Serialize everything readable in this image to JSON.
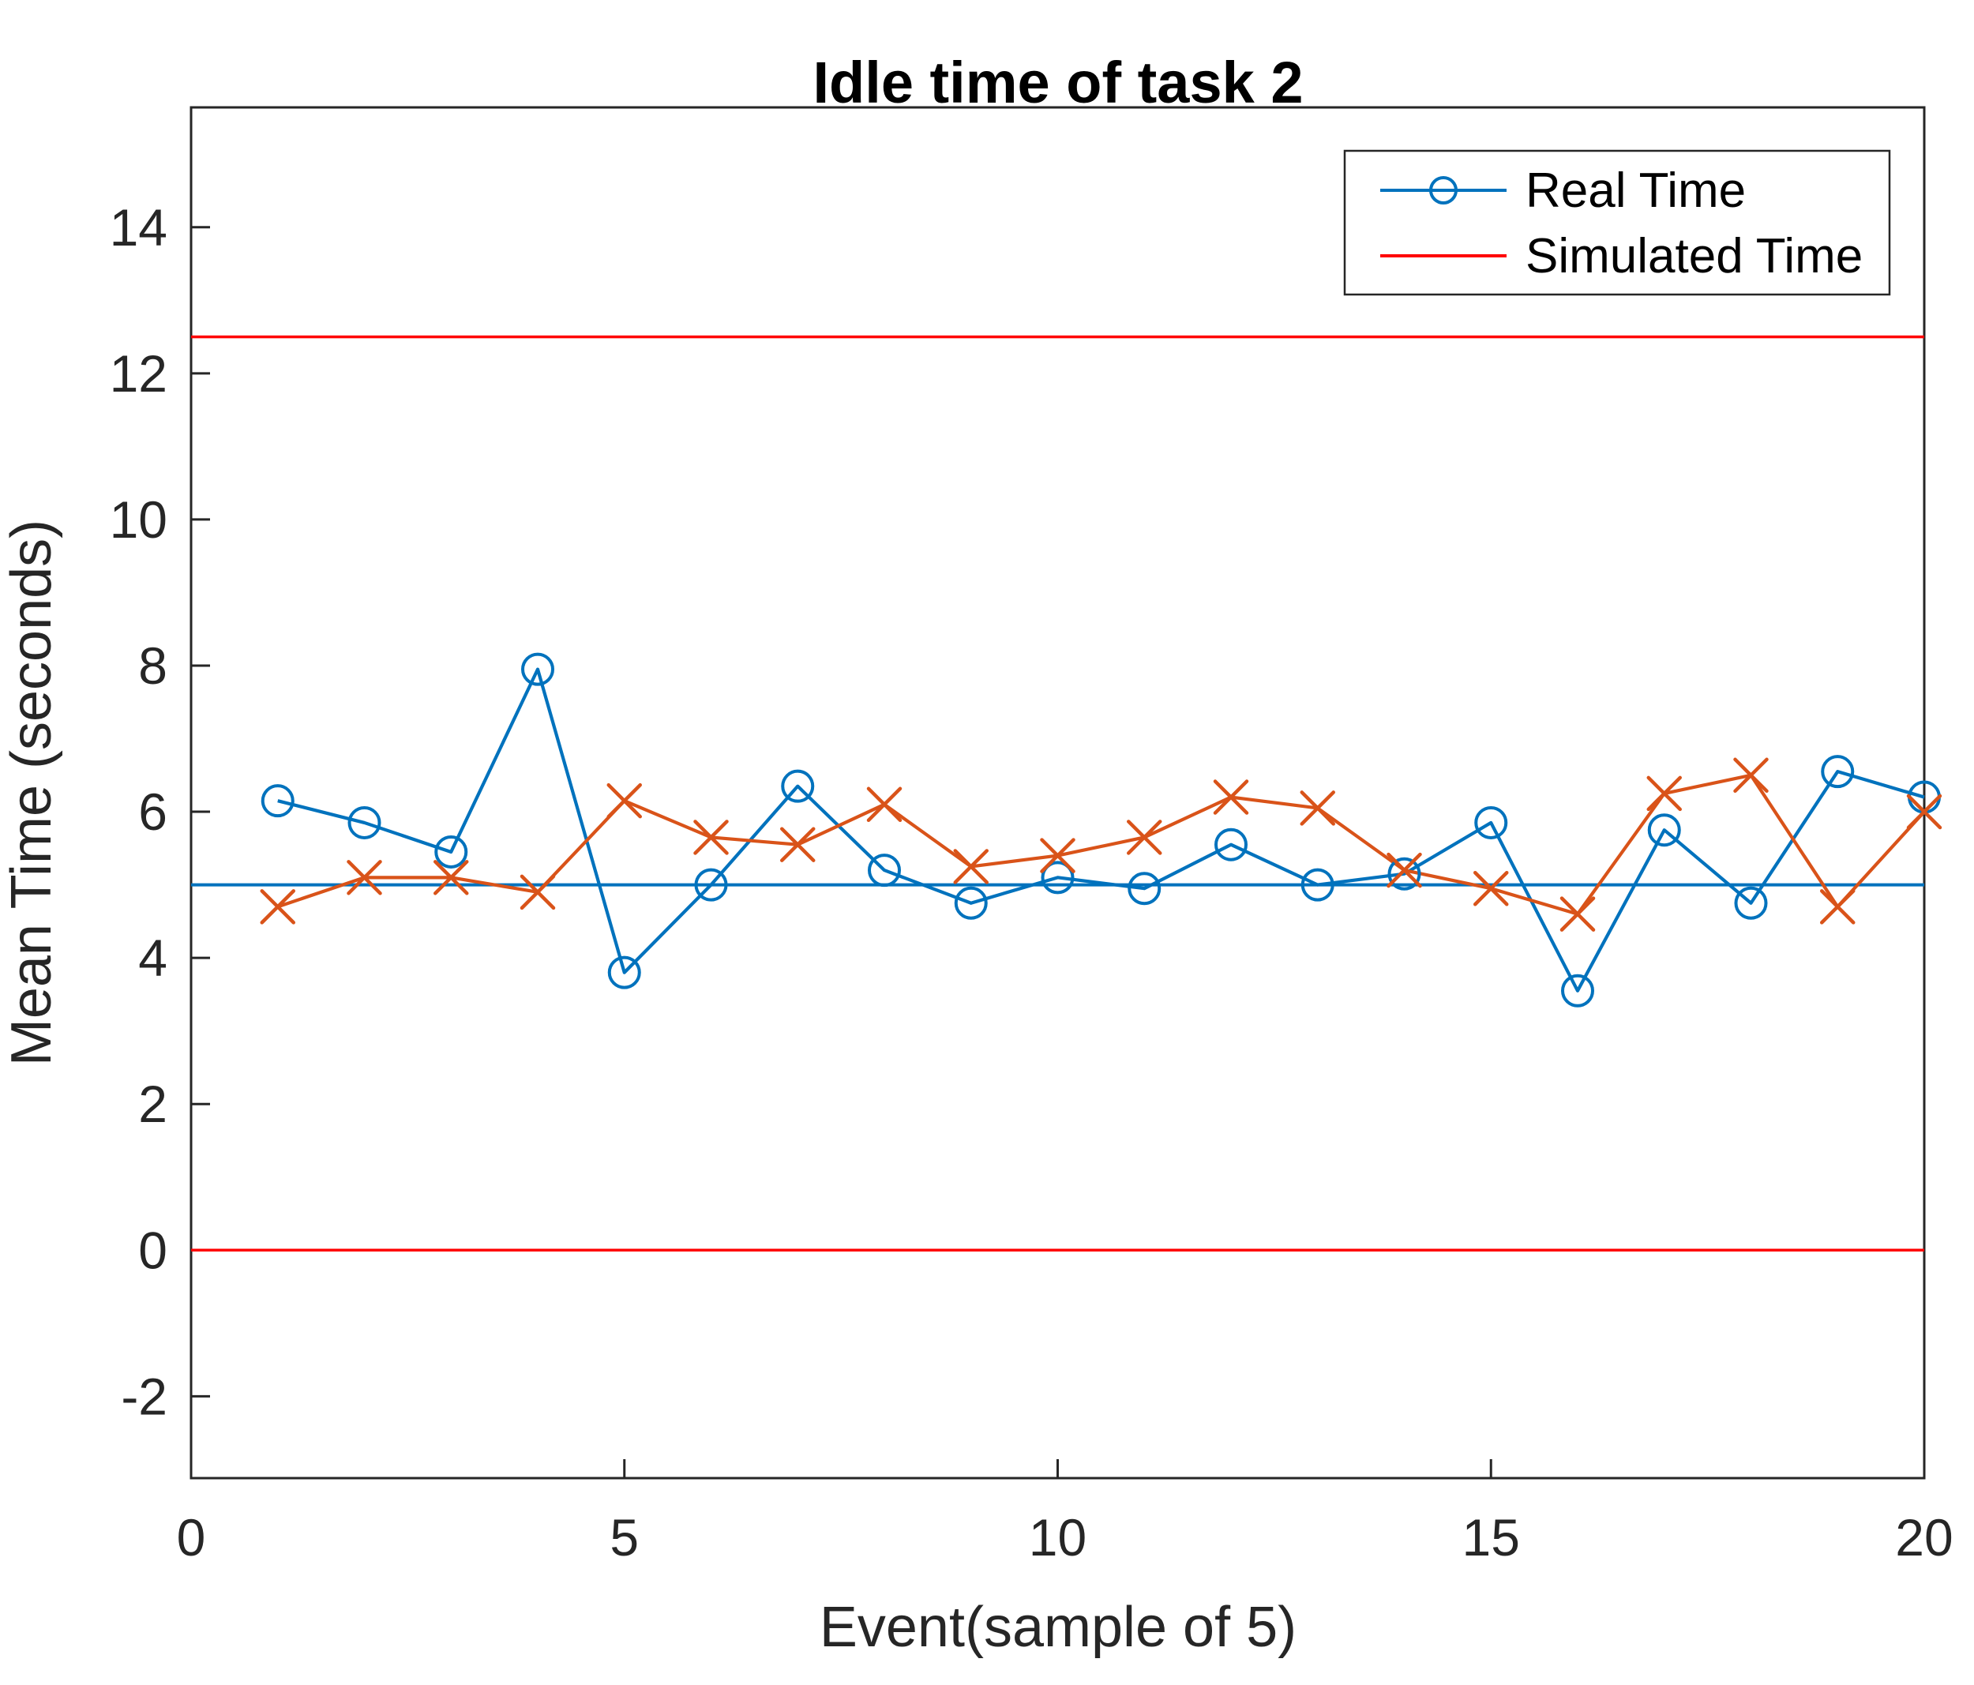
{
  "figure": {
    "background": "#ffffff",
    "axis_color": "#262626",
    "title_color": "#000000"
  },
  "chart_data": {
    "type": "line",
    "title": "Idle time of task 2",
    "xlabel": "Event(sample of 5)",
    "ylabel": "Mean Time (seconds)",
    "xlim": [
      0,
      20
    ],
    "ylim": [
      -3.12,
      15.64
    ],
    "xticks": [
      0,
      5,
      10,
      15,
      20
    ],
    "yticks": [
      -2,
      0,
      2,
      4,
      6,
      8,
      10,
      12,
      14
    ],
    "grid": false,
    "x": [
      1,
      2,
      3,
      4,
      5,
      6,
      7,
      8,
      9,
      10,
      11,
      12,
      13,
      14,
      15,
      16,
      17,
      18,
      19,
      20
    ],
    "series": [
      {
        "name": "Real Time",
        "color": "#0072BD",
        "marker": "circle",
        "values": [
          6.15,
          5.85,
          5.45,
          7.95,
          3.8,
          5.0,
          6.35,
          5.2,
          4.75,
          5.1,
          4.95,
          5.55,
          5.0,
          5.15,
          5.85,
          3.55,
          5.75,
          4.75,
          6.55,
          6.2
        ]
      },
      {
        "name": "",
        "color": "#D95319",
        "marker": "x",
        "values": [
          4.7,
          5.1,
          5.1,
          4.9,
          6.15,
          5.65,
          5.55,
          6.1,
          5.25,
          5.4,
          5.65,
          6.2,
          6.05,
          5.2,
          4.95,
          4.6,
          6.25,
          6.5,
          4.7,
          6.0
        ]
      }
    ],
    "reference_lines": [
      {
        "id": "upper-red-line",
        "y": 12.5,
        "color": "#FF0000",
        "width": 3.5
      },
      {
        "id": "center-blue-line",
        "y": 5.0,
        "color": "#0072BD",
        "width": 4
      },
      {
        "id": "lower-red-line",
        "y": 0.0,
        "color": "#FF0000",
        "width": 3.5
      }
    ],
    "legend": {
      "position": "northeast",
      "entries": [
        {
          "label": "Real Time",
          "color": "#0072BD",
          "marker": "circle"
        },
        {
          "label": "Simulated Time",
          "color": "#FF0000",
          "marker": "none"
        }
      ]
    }
  }
}
